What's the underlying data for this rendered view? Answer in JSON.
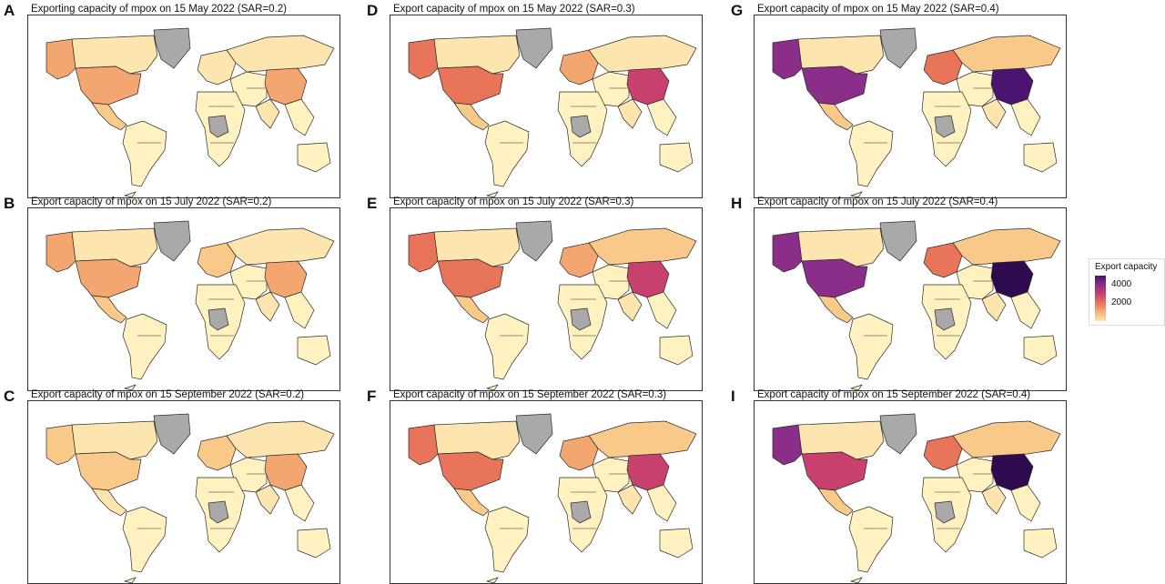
{
  "colors": {
    "no_data": "#a9a9a9",
    "border": "#2a2a2a",
    "scale": [
      "#fff2c0",
      "#fce5ae",
      "#f9c98a",
      "#f3a66f",
      "#e8745a",
      "#c8406d",
      "#8a2e8a",
      "#4a1470",
      "#2e0b4e"
    ]
  },
  "legend": {
    "title": "Export capacity",
    "ticks": [
      {
        "label": "4000",
        "value": 4000
      },
      {
        "label": "2000",
        "value": 2000
      }
    ],
    "max": 5000
  },
  "panels": [
    {
      "letter": "A",
      "title": "Exporting capacity of mpox on 15 May 2022 (SAR=0.2)",
      "levels": {
        "usa": 3,
        "china": 3,
        "alaska": 3,
        "canada": 1,
        "russia": 1,
        "mexico": 2,
        "europe": 1
      }
    },
    {
      "letter": "B",
      "title": "Export capacity of mpox on 15 July 2022 (SAR=0.2)",
      "levels": {
        "usa": 3,
        "china": 3,
        "alaska": 3,
        "canada": 1,
        "russia": 1,
        "mexico": 2,
        "europe": 2
      }
    },
    {
      "letter": "C",
      "title": "Export capacity of mpox on 15 September 2022 (SAR=0.2)",
      "levels": {
        "usa": 2,
        "china": 3,
        "alaska": 2,
        "canada": 1,
        "russia": 1,
        "mexico": 1,
        "europe": 2
      }
    },
    {
      "letter": "D",
      "title": "Export capacity of mpox on 15 May 2022 (SAR=0.3)",
      "levels": {
        "usa": 4,
        "china": 5,
        "alaska": 4,
        "canada": 1,
        "russia": 1,
        "mexico": 2,
        "europe": 3
      }
    },
    {
      "letter": "E",
      "title": "Export capacity of mpox on 15 July 2022 (SAR=0.3)",
      "levels": {
        "usa": 4,
        "china": 5,
        "alaska": 4,
        "canada": 1,
        "russia": 2,
        "mexico": 2,
        "europe": 3
      }
    },
    {
      "letter": "F",
      "title": "Export capacity of mpox on 15 September 2022 (SAR=0.3)",
      "levels": {
        "usa": 4,
        "china": 5,
        "alaska": 4,
        "canada": 1,
        "russia": 2,
        "mexico": 2,
        "europe": 3
      }
    },
    {
      "letter": "G",
      "title": "Export capacity of mpox on 15 May 2022 (SAR=0.4)",
      "levels": {
        "usa": 6,
        "china": 7,
        "alaska": 6,
        "canada": 1,
        "russia": 2,
        "mexico": 2,
        "europe": 4
      }
    },
    {
      "letter": "H",
      "title": "Export capacity of mpox on 15 July 2022 (SAR=0.4)",
      "levels": {
        "usa": 6,
        "china": 8,
        "alaska": 6,
        "canada": 1,
        "russia": 2,
        "mexico": 2,
        "europe": 4
      }
    },
    {
      "letter": "I",
      "title": "Export capacity of mpox on 15 September 2022 (SAR=0.4)",
      "levels": {
        "usa": 5,
        "china": 8,
        "alaska": 6,
        "canada": 1,
        "russia": 2,
        "mexico": 2,
        "europe": 4
      }
    }
  ]
}
